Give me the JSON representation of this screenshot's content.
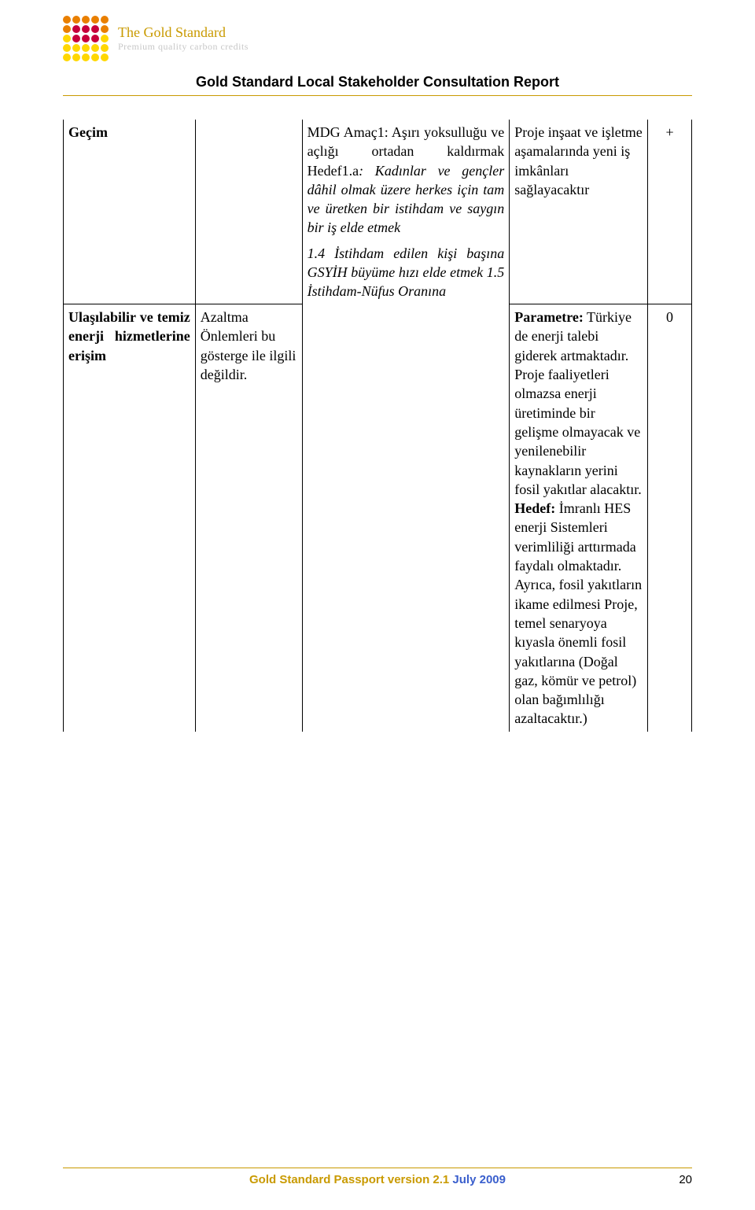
{
  "brand": {
    "title": "The Gold Standard",
    "subtitle": "Premium quality carbon credits",
    "title_color": "#c99a00",
    "subtitle_color": "#c8c8c8"
  },
  "logo_orbs": [
    [
      "#e97f00",
      "#e97f00",
      "#e97f00",
      "#e97f00",
      "#e97f00"
    ],
    [
      "#e97f00",
      "#c7003b",
      "#c7003b",
      "#c7003b",
      "#e97f00"
    ],
    [
      "#ffd700",
      "#c7003b",
      "#c7003b",
      "#c7003b",
      "#ffd700"
    ],
    [
      "#ffd700",
      "#ffd700",
      "#ffd700",
      "#ffd700",
      "#ffd700"
    ],
    [
      "#ffd700",
      "#ffd700",
      "#ffd700",
      "#ffd700",
      "#ffd700"
    ]
  ],
  "report_title": "Gold Standard Local Stakeholder Consultation Report",
  "rule_color": "#c99a00",
  "table": {
    "rows": [
      {
        "a": "Geçim",
        "b": "",
        "c_plain": "MDG Amaç1: Aşırı yoksulluğu ve açlığı ortadan kaldırmak Hedef1.a",
        "c_italic": ": Kadınlar ve gençler dâhil olmak üzere herkes için tam ve üretken bir istihdam ve saygın bir iş elde etmek",
        "d": "Proje inşaat ve işletme aşamalarında yeni iş imkânları sağlayacaktır",
        "e": "+"
      },
      {
        "c_italic": "1.4 İstihdam edilen kişi başına GSYİH büyüme hızı elde etmek 1.5 İstihdam-Nüfus Oranına"
      },
      {
        "a": "Ulaşılabilir ve temiz enerji hizmetlerine erişim",
        "b": "Azaltma Önlemleri bu gösterge ile ilgili değildir.",
        "d_label_param": "Parametre:",
        "d_param": " Türkiye de enerji talebi giderek artmaktadır. Proje faaliyetleri olmazsa enerji üretiminde bir gelişme olmayacak ve yenilenebilir kaynakların yerini fosil yakıtlar alacaktır.",
        "d_label_hedef": "Hedef:",
        "d_hedef": " İmranlı HES enerji Sistemleri verimliliği arttırmada faydalı olmaktadır. Ayrıca, fosil yakıtların ikame edilmesi Proje, temel senaryoya kıyasla önemli fosil yakıtlarına (Doğal gaz, kömür ve petrol) olan bağımlılığı azaltacaktır.)",
        "e": "0"
      }
    ]
  },
  "footer": {
    "text_gold": "Gold Standard Passport version 2.1 ",
    "text_blue": "July 2009",
    "page_num": "20"
  }
}
